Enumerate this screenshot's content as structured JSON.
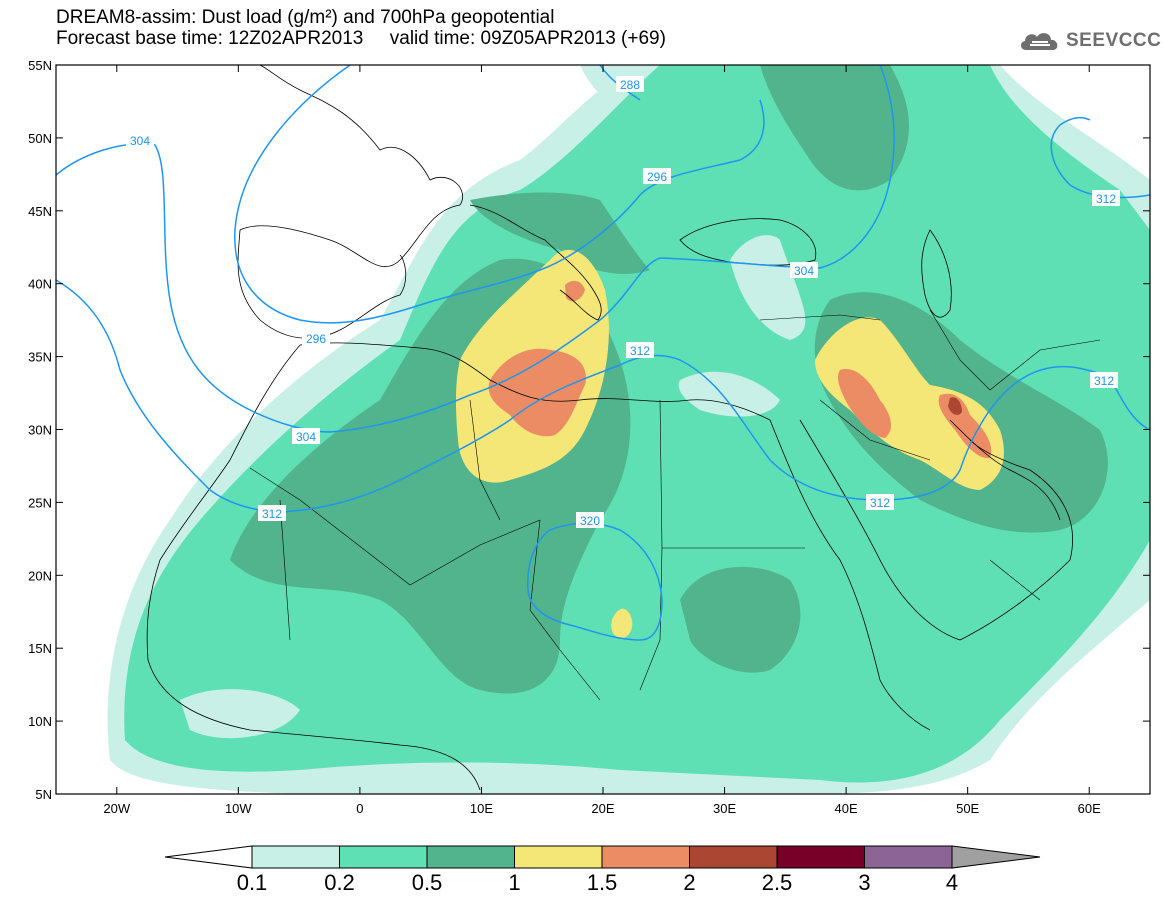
{
  "header": {
    "title_line1": "DREAM8-assim: Dust load (g/m²) and 700hPa geopotential",
    "base_time_label": "Forecast base time: 12Z02APR2013",
    "valid_time_label": "valid time: 09Z05APR2013 (+69)"
  },
  "brand": {
    "name": "SEEVCCC",
    "icon": "cloud-logo-icon"
  },
  "map": {
    "lat_labels": [
      "55N",
      "50N",
      "45N",
      "40N",
      "35N",
      "30N",
      "25N",
      "20N",
      "15N",
      "10N",
      "5N"
    ],
    "lat_values": [
      55,
      50,
      45,
      40,
      35,
      30,
      25,
      20,
      15,
      10,
      5
    ],
    "lon_labels": [
      "20W",
      "10W",
      "0",
      "10E",
      "20E",
      "30E",
      "40E",
      "50E",
      "60E"
    ],
    "lon_values": [
      -20,
      -10,
      0,
      10,
      20,
      30,
      40,
      50,
      60
    ],
    "lon_range": [
      -25,
      65
    ],
    "lat_range": [
      5,
      55
    ],
    "contour_labels": [
      "288",
      "296",
      "304",
      "304",
      "304",
      "312",
      "312",
      "312",
      "312",
      "296",
      "320",
      "312"
    ]
  },
  "colorbar": {
    "ticks": [
      "0.1",
      "0.2",
      "0.5",
      "1",
      "1.5",
      "2",
      "2.5",
      "3",
      "4"
    ],
    "colors": [
      "#c8f0e6",
      "#5ee0b4",
      "#52b48c",
      "#f5e678",
      "#eb8c64",
      "#aa4632",
      "#780028",
      "#8c6496",
      "#a0a0a0"
    ]
  },
  "colors": {
    "level_0_1": "#c8f0e6",
    "level_0_2": "#5ee0b4",
    "level_0_5": "#52b48c",
    "level_1": "#f5e678",
    "level_1_5": "#eb8c64",
    "level_2": "#aa4632",
    "contour_line": "#1e96f0",
    "contour_label": "#1e96f0"
  }
}
